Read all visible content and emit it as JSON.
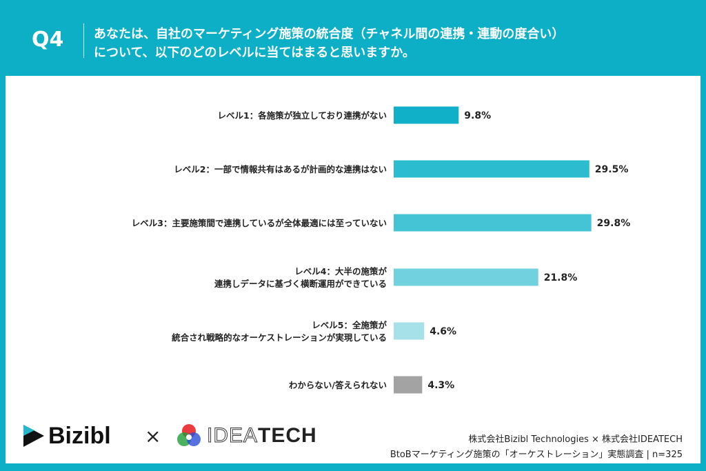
{
  "header": {
    "q": "Q4",
    "line1": "あなたは、自社のマーケティング施策の統合度（チャネル間の連携・連動の度合い）",
    "line2": "について、以下のどのレベルに当てはまると思いますか。"
  },
  "chart_data": {
    "type": "bar",
    "orientation": "horizontal",
    "categories": [
      [
        "レベル1：各施策が独立しており連携がない"
      ],
      [
        "レベル2：一部で情報共有はあるが計画的な連携はない"
      ],
      [
        "レベル3：主要施策間で連携しているが全体最適には至っていない"
      ],
      [
        "レベル4：大半の施策が",
        "連携しデータに基づく横断運用ができている"
      ],
      [
        "レベル5：全施策が",
        "統合され戦略的なオーケストレーションが実現している"
      ],
      [
        "わからない/答えられない"
      ]
    ],
    "values": [
      9.8,
      29.5,
      29.8,
      21.8,
      4.6,
      4.3
    ],
    "labels": [
      "9.8%",
      "29.5%",
      "29.8%",
      "21.8%",
      "4.6%",
      "4.3%"
    ],
    "colors": [
      "#0fb0c8",
      "#2bbccf",
      "#45c4d5",
      "#72d1df",
      "#a6e1e9",
      "#a3a3a3"
    ],
    "xlim": [
      0,
      100
    ],
    "grid": false
  },
  "footer": {
    "logo1": "Bizibl",
    "times": "×",
    "logo2_a": "IDEA",
    "logo2_b": "TECH",
    "credit": "株式会社Bizibl Technologies × 株式会社IDEATECH",
    "survey": "BtoBマーケティング施策の「オーケストレーション」実態調査 | n=325"
  }
}
